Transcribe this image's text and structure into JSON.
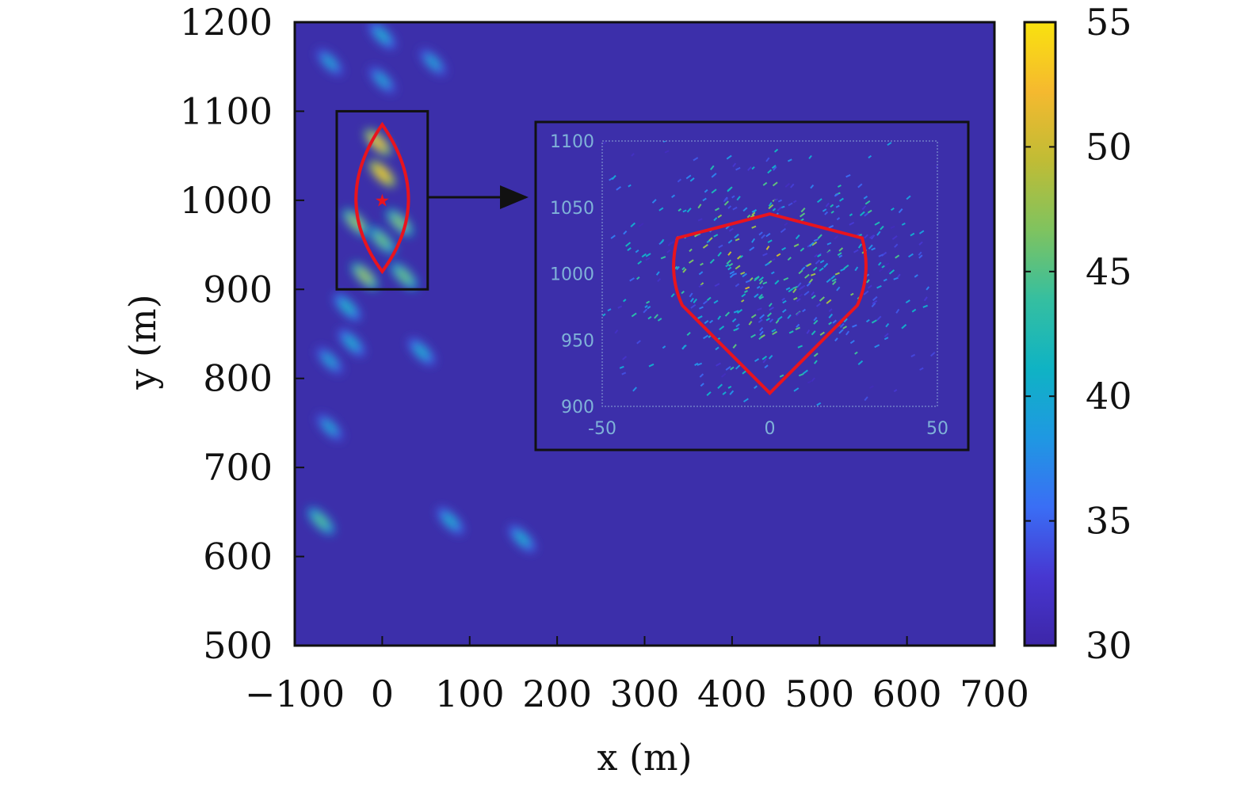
{
  "chart_data": {
    "type": "heatmap",
    "title": "",
    "xlabel": "x (m)",
    "ylabel": "y (m)",
    "xlim": [
      -100,
      700
    ],
    "ylim": [
      500,
      1200
    ],
    "xticks": [
      "−100",
      "0",
      "100",
      "200",
      "300",
      "400",
      "500",
      "600",
      "700"
    ],
    "yticks": [
      "500",
      "600",
      "700",
      "800",
      "900",
      "1000",
      "1100",
      "1200"
    ],
    "colorbar": {
      "range": [
        30,
        55
      ],
      "ticks": [
        "30",
        "35",
        "40",
        "45",
        "50",
        "55"
      ],
      "colormap": [
        "#3d26a8",
        "#4737d1",
        "#3a6ef5",
        "#1f98e2",
        "#0fb3c4",
        "#35bfa0",
        "#7fc35f",
        "#c0bc35",
        "#f5b92f",
        "#f9e20f"
      ]
    },
    "background_color": "#3c2faa",
    "target_marker": {
      "x": 0,
      "y": 1000,
      "label": "★"
    },
    "contour_region": {
      "x_halfwidth": 30,
      "y_min": 920,
      "y_max": 1085,
      "color": "#e8141e"
    },
    "zoom_box": {
      "x": [
        -52,
        52
      ],
      "y": [
        900,
        1100
      ]
    },
    "hotspots": [
      {
        "x": 0,
        "y": 1030,
        "value": 53
      },
      {
        "x": -5,
        "y": 1065,
        "value": 52
      },
      {
        "x": -30,
        "y": 975,
        "value": 48
      },
      {
        "x": 20,
        "y": 975,
        "value": 47
      },
      {
        "x": 0,
        "y": 955,
        "value": 46
      },
      {
        "x": -20,
        "y": 915,
        "value": 48
      },
      {
        "x": 25,
        "y": 915,
        "value": 46
      },
      {
        "x": -40,
        "y": 880,
        "value": 42
      },
      {
        "x": -60,
        "y": 1155,
        "value": 40
      },
      {
        "x": 0,
        "y": 1185,
        "value": 41
      },
      {
        "x": 0,
        "y": 1135,
        "value": 40
      },
      {
        "x": 58,
        "y": 1155,
        "value": 40
      },
      {
        "x": -35,
        "y": 840,
        "value": 41
      },
      {
        "x": -60,
        "y": 820,
        "value": 40
      },
      {
        "x": 45,
        "y": 830,
        "value": 41
      },
      {
        "x": -60,
        "y": 745,
        "value": 40
      },
      {
        "x": -70,
        "y": 640,
        "value": 45
      },
      {
        "x": 78,
        "y": 640,
        "value": 41
      },
      {
        "x": 160,
        "y": 620,
        "value": 41
      }
    ],
    "inset": {
      "xlim": [
        -50,
        50
      ],
      "ylim": [
        900,
        1100
      ],
      "xticks": [
        "-50",
        "0",
        "50"
      ],
      "yticks": [
        "900",
        "950",
        "1000",
        "1050",
        "1100"
      ],
      "contour": {
        "x_halfwidth": 29,
        "y_min": 910,
        "y_max": 1045,
        "y_mid": 1000
      }
    }
  }
}
